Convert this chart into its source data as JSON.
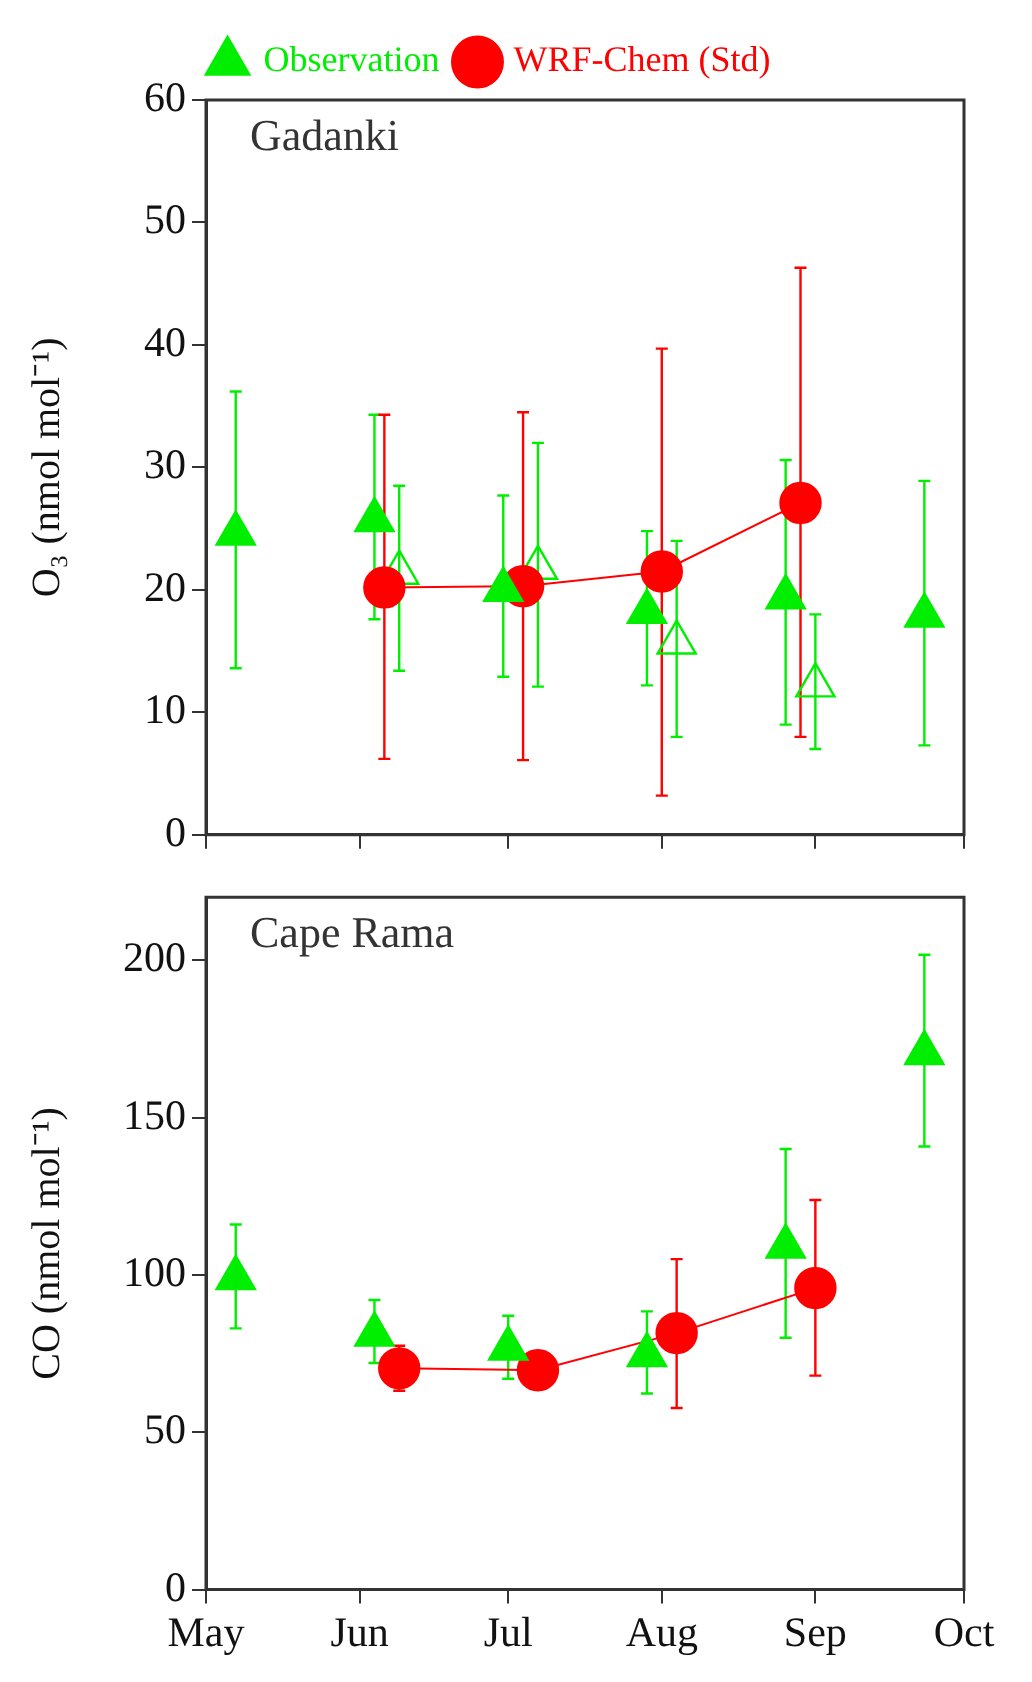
{
  "chart_data": [
    {
      "type": "line",
      "title": "Gadanki",
      "ylabel": "O₃ (nmol mol⁻¹)",
      "xlim": [
        "--05-01",
        "--10-01"
      ],
      "xticks": [
        {
          "value": "--05-01",
          "label": null
        },
        {
          "value": "--06-01",
          "label": null
        },
        {
          "value": "--07-01",
          "label": null
        },
        {
          "value": "--08-01",
          "label": null
        },
        {
          "value": "--09-01",
          "label": null
        },
        {
          "value": "--10-01",
          "label": null
        }
      ],
      "ylim": [
        0,
        60
      ],
      "yticks": [
        0,
        10,
        20,
        30,
        40,
        50,
        60
      ],
      "tick_labels": "y",
      "grid": false,
      "legend": "top",
      "series": [
        {
          "name": "Observation",
          "type": "scatter",
          "marker": "triangle",
          "color": "#00ee00",
          "x": [
            "--05-07",
            "--06-04",
            "--06-30",
            "--07-29",
            "--08-26",
            "--09-23"
          ],
          "values": [
            24.6,
            25.7,
            20,
            18.2,
            19.4,
            17.9
          ],
          "errors": [
            [
              13.6,
              36.2
            ],
            [
              17.6,
              34.3
            ],
            [
              12.9,
              27.7
            ],
            [
              12.2,
              24.8
            ],
            [
              9,
              30.6
            ],
            [
              7.3,
              28.9
            ]
          ]
        },
        {
          "name": "WRF-Chem (Std)",
          "type": "line",
          "marker": "circle",
          "color": "#ff0000",
          "x": [
            "--06-06",
            "--07-04",
            "--08-01",
            "--08-29"
          ],
          "values": [
            20.2,
            20.3,
            21.5,
            27.1
          ],
          "errors": [
            [
              6.2,
              34.3
            ],
            [
              6.1,
              34.5
            ],
            [
              3.2,
              39.7
            ],
            [
              8,
              46.3
            ]
          ]
        },
        {
          "type": "scatter",
          "marker": "triangle",
          "color": "#00ee00",
          "x": [
            "--06-09",
            "--07-07",
            "--08-04",
            "--09-01"
          ],
          "values": [
            21.4,
            21.8,
            15.7,
            12.2
          ],
          "errors": [
            [
              13.4,
              28.5
            ],
            [
              12.1,
              32
            ],
            [
              8,
              24
            ],
            [
              7,
              18
            ]
          ]
        }
      ]
    },
    {
      "type": "line",
      "title": "Cape Rama",
      "ylabel": "CO (nmol mol⁻¹)",
      "xlim": [
        "--05-01",
        "--10-01"
      ],
      "xticks": [
        {
          "value": "--05-01",
          "label": "May"
        },
        {
          "value": "--06-01",
          "label": "Jun"
        },
        {
          "value": "--07-01",
          "label": "Jul"
        },
        {
          "value": "--08-01",
          "label": "Aug"
        },
        {
          "value": "--09-01",
          "label": "Sep"
        },
        {
          "value": "--10-01",
          "label": "Oct"
        }
      ],
      "ylim": [
        0,
        220
      ],
      "yticks": [
        0,
        50,
        100,
        150,
        200
      ],
      "grid": false,
      "series": [
        {
          "type": "scatter",
          "marker": "triangle",
          "color": "#00ee00",
          "x": [
            "--05-07",
            "--06-04",
            "--07-01",
            "--07-29",
            "--08-26",
            "--09-23"
          ],
          "values": [
            99,
            81,
            76.6,
            74.5,
            109,
            170.5
          ],
          "errors": [
            [
              83,
              116
            ],
            [
              72,
              92
            ],
            [
              67,
              87
            ],
            [
              62.3,
              88.4
            ],
            [
              80,
              140
            ],
            [
              140.8,
              201.7
            ]
          ]
        },
        {
          "type": "line",
          "marker": "circle",
          "color": "#ff0000",
          "x": [
            "--06-09",
            "--07-07",
            "--08-04",
            "--09-01"
          ],
          "values": [
            70.3,
            69.7,
            81.5,
            95.8
          ],
          "errors": [
            [
              63.2,
              77.5
            ],
            null,
            [
              57.7,
              105
            ],
            [
              68,
              123.8
            ]
          ]
        }
      ]
    }
  ]
}
